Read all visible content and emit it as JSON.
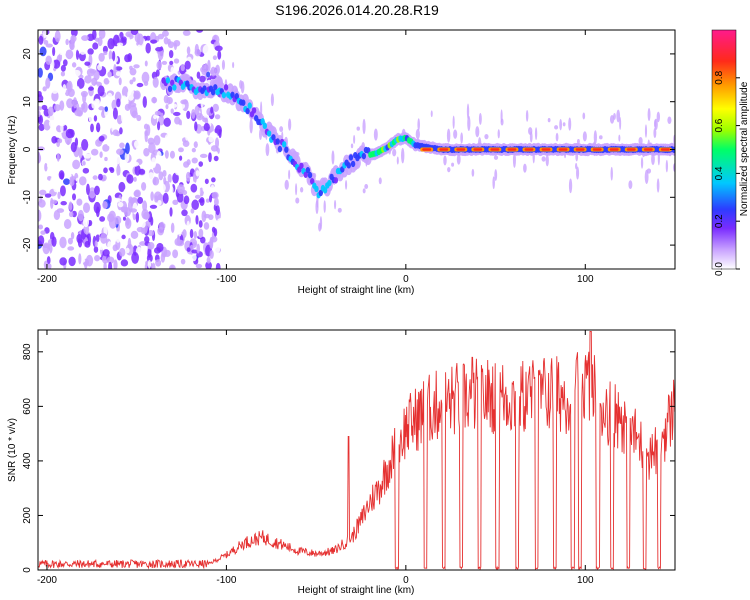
{
  "title": "S196.2026.014.20.28.R19",
  "chart_data": [
    {
      "type": "heatmap",
      "xlabel": "Height of straight line (km)",
      "ylabel": "Frequency (Hz)",
      "xlim": [
        -205,
        150
      ],
      "ylim": [
        -25,
        25
      ],
      "x_ticks": [
        -200,
        -100,
        0,
        100
      ],
      "y_ticks": [
        -20,
        -10,
        0,
        10,
        20
      ],
      "colorbar": {
        "label": "Normalized spectral amplitude",
        "range": [
          0,
          1
        ],
        "ticks": [
          0.0,
          0.2,
          0.4,
          0.6,
          0.8
        ],
        "tick_labels": [
          "0.0",
          "0.2",
          "0.4",
          "0.6",
          "0.8"
        ],
        "colormap": [
          "#ffffff",
          "#c9a3ff",
          "#7a2cff",
          "#2d3cff",
          "#00c8ff",
          "#00ff66",
          "#9aff00",
          "#ffff00",
          "#ff9900",
          "#ff2a1a",
          "#ff1a8c"
        ]
      },
      "ridge": {
        "x": [
          -135,
          -125,
          -115,
          -105,
          -95,
          -85,
          -75,
          -65,
          -55,
          -48,
          -40,
          -32,
          -24,
          -18,
          -10,
          -5,
          0,
          5,
          20,
          40,
          60,
          80,
          100,
          120,
          150
        ],
        "y": [
          13.5,
          14,
          12.5,
          13,
          11,
          8,
          3,
          -1,
          -5,
          -9,
          -6,
          -3,
          -1,
          -1,
          0.5,
          2,
          2.5,
          1,
          0,
          0,
          0,
          0,
          0,
          0,
          0
        ]
      },
      "background_noise_x_range": [
        -205,
        -103
      ]
    },
    {
      "type": "line",
      "xlabel": "Height of straight line (km)",
      "ylabel": "SNR (10 * v/v)",
      "xlim": [
        -205,
        150
      ],
      "ylim": [
        0,
        880
      ],
      "x_ticks": [
        -200,
        -100,
        0,
        100
      ],
      "y_ticks": [
        0,
        200,
        400,
        600,
        800
      ],
      "line_color": "#e53030",
      "profile": {
        "x": [
          -205,
          -110,
          -100,
          -90,
          -80,
          -70,
          -60,
          -50,
          -40,
          -30,
          -25,
          -20,
          -15,
          -10,
          -5,
          0,
          10,
          20,
          30,
          40,
          50,
          60,
          70,
          80,
          90,
          95,
          100,
          105,
          110,
          120,
          125,
          130,
          135,
          140,
          145,
          150
        ],
        "y": [
          22,
          22,
          55,
          100,
          120,
          95,
          70,
          60,
          70,
          120,
          180,
          250,
          300,
          380,
          450,
          520,
          580,
          610,
          630,
          640,
          640,
          630,
          640,
          650,
          640,
          660,
          690,
          650,
          600,
          560,
          520,
          470,
          420,
          440,
          520,
          600
        ]
      },
      "dropout_x": [
        -5,
        11,
        21,
        31,
        41,
        51,
        62,
        73,
        83,
        93,
        97,
        107,
        115,
        124,
        133,
        141
      ],
      "peaks": [
        {
          "x": 103,
          "y": 875
        },
        {
          "x": -32,
          "y": 490
        },
        {
          "x": 37,
          "y": 780
        }
      ]
    }
  ]
}
